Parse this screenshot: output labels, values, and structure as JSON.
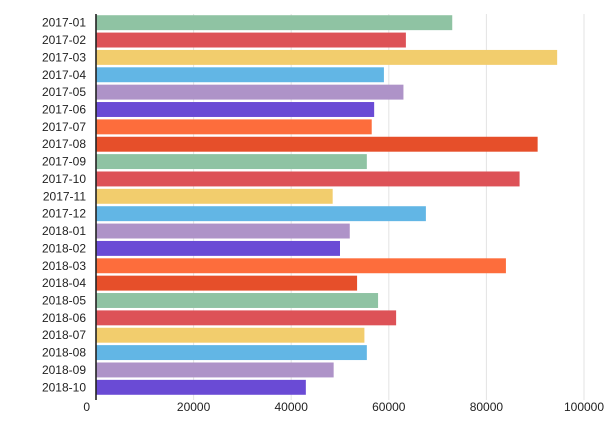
{
  "chart_data": {
    "type": "bar",
    "orientation": "horizontal",
    "categories": [
      "2017-01",
      "2017-02",
      "2017-03",
      "2017-04",
      "2017-05",
      "2017-06",
      "2017-07",
      "2017-08",
      "2017-09",
      "2017-10",
      "2017-11",
      "2017-12",
      "2018-01",
      "2018-02",
      "2018-03",
      "2018-04",
      "2018-05",
      "2018-06",
      "2018-07",
      "2018-08",
      "2018-09",
      "2018-10"
    ],
    "values": [
      73000,
      63500,
      94500,
      59000,
      63000,
      57000,
      56500,
      90500,
      55500,
      86800,
      48500,
      67600,
      52000,
      50000,
      84000,
      53500,
      57800,
      61500,
      55000,
      55500,
      48700,
      43000
    ],
    "xlim": [
      0,
      100000
    ],
    "xticks": [
      "0",
      "20000",
      "40000",
      "60000",
      "80000",
      "100000"
    ],
    "grid": true,
    "title": "",
    "xlabel": "",
    "ylabel": "",
    "colors": [
      "#8fc3a3",
      "#dd5257",
      "#f2cd6d",
      "#62b6e5",
      "#ae93c8",
      "#6a4bd5",
      "#fd6d3c",
      "#e64f2a",
      "#8fc3a3",
      "#dd5257",
      "#f2cd6d",
      "#62b6e5",
      "#ae93c8",
      "#6a4bd5",
      "#fd6d3c",
      "#e64f2a",
      "#8fc3a3",
      "#dd5257",
      "#f2cd6d",
      "#62b6e5",
      "#ae93c8",
      "#6a4bd5"
    ]
  }
}
